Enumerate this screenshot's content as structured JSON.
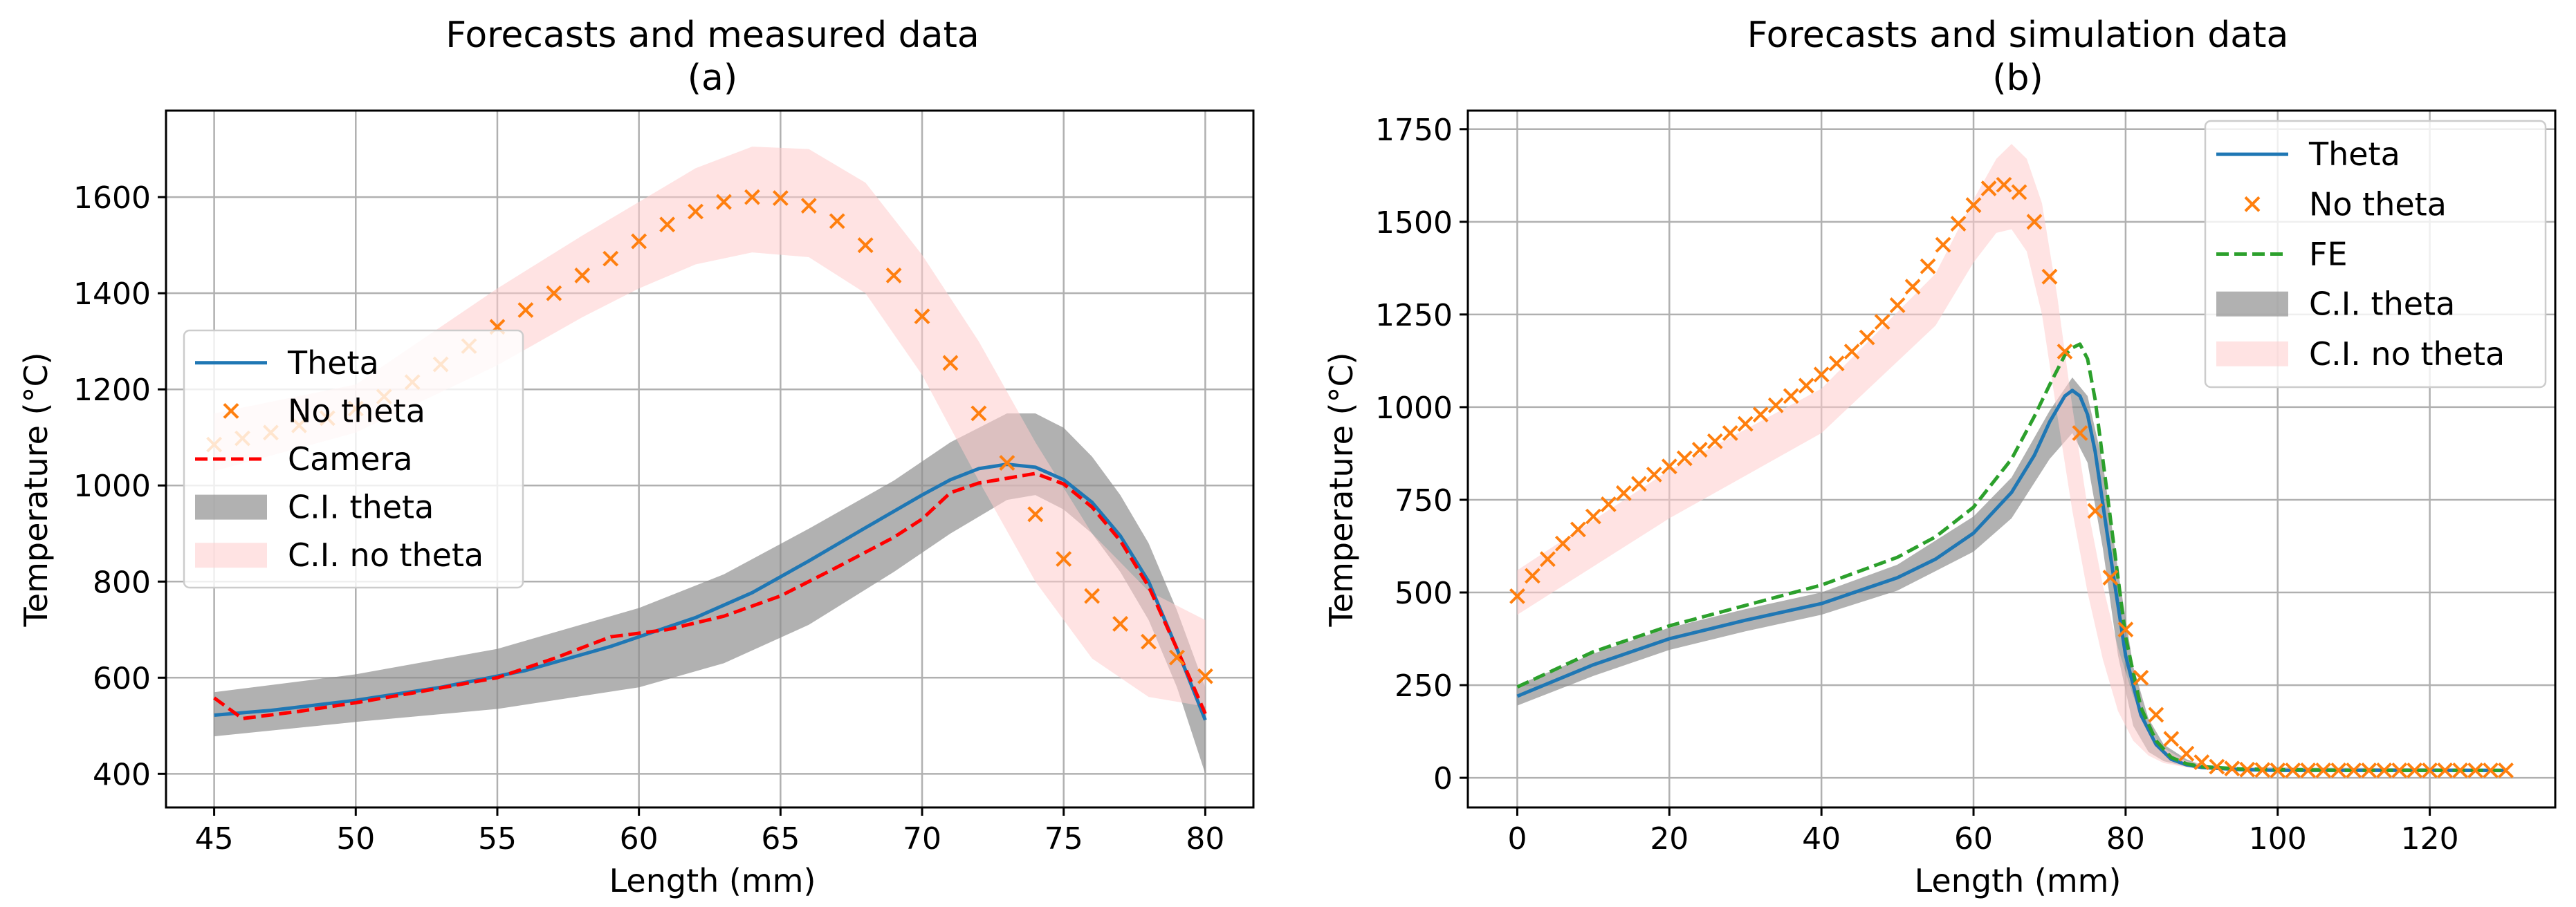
{
  "figure": {
    "colors": {
      "theta": "#1f77b4",
      "no_theta": "#ff7f0e",
      "camera": "#ff0000",
      "fe": "#2ca02c",
      "ci_theta": "#8c8c8c",
      "ci_no_theta": "#ffcccc",
      "grid": "#b0b0b0"
    }
  },
  "chart_data": [
    {
      "id": "a",
      "type": "line",
      "title": "Forecasts and measured data",
      "subtitle": "(a)",
      "xlabel": "Length (mm)",
      "ylabel": "Temperature (°C)",
      "xlim": [
        43.3,
        81.7
      ],
      "ylim": [
        330,
        1780
      ],
      "xticks": [
        45,
        50,
        55,
        60,
        65,
        70,
        75,
        80
      ],
      "yticks": [
        400,
        600,
        800,
        1000,
        1200,
        1400,
        1600
      ],
      "grid": true,
      "legend_position": "center-left",
      "legend": [
        "Theta",
        "No theta",
        "Camera",
        "C.I. theta",
        "C.I. no theta"
      ],
      "series": [
        {
          "name": "Theta",
          "style": "line",
          "x": [
            45,
            47,
            50,
            53,
            56,
            59,
            62,
            64,
            66,
            68,
            70,
            71,
            72,
            73,
            74,
            75,
            76,
            77,
            78,
            79,
            80
          ],
          "values": [
            522,
            532,
            553,
            580,
            615,
            665,
            725,
            777,
            843,
            912,
            980,
            1012,
            1035,
            1044,
            1038,
            1012,
            965,
            895,
            800,
            660,
            512
          ]
        },
        {
          "name": "No theta",
          "style": "markers",
          "x": [
            45,
            46,
            47,
            48,
            49,
            50,
            51,
            52,
            53,
            54,
            55,
            56,
            57,
            58,
            59,
            60,
            61,
            62,
            63,
            64,
            65,
            66,
            67,
            68,
            69,
            70,
            71,
            72,
            73,
            74,
            75,
            76,
            77,
            78,
            79,
            80
          ],
          "values": [
            1085,
            1098,
            1110,
            1125,
            1140,
            1160,
            1185,
            1215,
            1252,
            1290,
            1330,
            1365,
            1400,
            1437,
            1472,
            1508,
            1543,
            1570,
            1590,
            1600,
            1598,
            1582,
            1550,
            1500,
            1437,
            1352,
            1255,
            1150,
            1047,
            940,
            847,
            770,
            712,
            675,
            642,
            603
          ]
        },
        {
          "name": "Camera",
          "style": "dashed",
          "x": [
            45,
            46,
            48,
            50,
            52,
            55,
            57,
            59,
            61,
            63,
            65,
            67,
            69,
            70,
            71,
            72,
            73,
            74,
            75,
            76,
            77,
            78,
            79,
            80
          ],
          "values": [
            558,
            515,
            530,
            548,
            568,
            600,
            640,
            685,
            700,
            728,
            770,
            830,
            892,
            930,
            985,
            1005,
            1015,
            1025,
            1003,
            955,
            885,
            790,
            660,
            525
          ]
        },
        {
          "name": "C.I. theta",
          "style": "band",
          "x": [
            45,
            50,
            55,
            60,
            63,
            66,
            69,
            71,
            73,
            74,
            75,
            76,
            77,
            78,
            79,
            80
          ],
          "lower": [
            478,
            508,
            535,
            580,
            630,
            710,
            820,
            900,
            970,
            980,
            950,
            900,
            820,
            720,
            580,
            400
          ],
          "upper": [
            570,
            607,
            660,
            745,
            815,
            910,
            1010,
            1090,
            1150,
            1150,
            1120,
            1060,
            980,
            880,
            740,
            580
          ]
        },
        {
          "name": "C.I. no theta",
          "style": "band",
          "x": [
            45,
            50,
            55,
            58,
            60,
            62,
            64,
            66,
            68,
            70,
            72,
            74,
            76,
            78,
            80
          ],
          "lower": [
            1030,
            1110,
            1250,
            1350,
            1410,
            1460,
            1485,
            1475,
            1400,
            1230,
            1010,
            800,
            640,
            560,
            540
          ],
          "upper": [
            1150,
            1210,
            1410,
            1520,
            1590,
            1660,
            1705,
            1700,
            1630,
            1480,
            1300,
            1090,
            900,
            780,
            720
          ]
        }
      ]
    },
    {
      "id": "b",
      "type": "line",
      "title": "Forecasts and simulation data",
      "subtitle": "(b)",
      "xlabel": "Length (mm)",
      "ylabel": "Temperature (°C)",
      "xlim": [
        -6.5,
        136.5
      ],
      "ylim": [
        -80,
        1800
      ],
      "xticks": [
        0,
        20,
        40,
        60,
        80,
        100,
        120
      ],
      "yticks": [
        0,
        250,
        500,
        750,
        1000,
        1250,
        1500,
        1750
      ],
      "grid": true,
      "legend_position": "top-right",
      "legend": [
        "Theta",
        "No theta",
        "FE",
        "C.I. theta",
        "C.I. no theta"
      ],
      "series": [
        {
          "name": "Theta",
          "style": "line",
          "x": [
            0,
            10,
            20,
            30,
            40,
            50,
            55,
            60,
            65,
            68,
            70,
            72,
            73,
            74,
            75,
            76,
            78,
            80,
            82,
            84,
            86,
            88,
            90,
            95,
            100,
            110,
            120,
            130
          ],
          "values": [
            220,
            305,
            375,
            425,
            470,
            540,
            590,
            660,
            770,
            870,
            960,
            1030,
            1045,
            1030,
            980,
            880,
            600,
            330,
            170,
            90,
            50,
            35,
            28,
            22,
            20,
            20,
            20,
            20
          ]
        },
        {
          "name": "No theta",
          "style": "markers",
          "x": [
            0,
            2,
            4,
            6,
            8,
            10,
            12,
            14,
            16,
            18,
            20,
            22,
            24,
            26,
            28,
            30,
            32,
            34,
            36,
            38,
            40,
            42,
            44,
            46,
            48,
            50,
            52,
            54,
            56,
            58,
            60,
            62,
            64,
            66,
            68,
            70,
            72,
            74,
            76,
            78,
            80,
            82,
            84,
            86,
            88,
            90,
            92,
            94,
            96,
            98,
            100,
            102,
            104,
            106,
            108,
            110,
            112,
            114,
            116,
            118,
            120,
            122,
            124,
            126,
            128,
            130
          ],
          "values": [
            490,
            545,
            590,
            632,
            670,
            705,
            738,
            768,
            793,
            818,
            840,
            862,
            885,
            908,
            930,
            955,
            980,
            1005,
            1030,
            1058,
            1088,
            1118,
            1150,
            1188,
            1230,
            1275,
            1325,
            1380,
            1438,
            1495,
            1545,
            1590,
            1600,
            1580,
            1500,
            1352,
            1150,
            930,
            720,
            540,
            400,
            270,
            170,
            105,
            65,
            42,
            30,
            25,
            22,
            21,
            20,
            20,
            20,
            20,
            20,
            20,
            20,
            20,
            20,
            20,
            20,
            20,
            20,
            20,
            20,
            20
          ]
        },
        {
          "name": "FE",
          "style": "dashed",
          "x": [
            0,
            10,
            20,
            30,
            40,
            50,
            55,
            60,
            65,
            68,
            70,
            72,
            73,
            74,
            75,
            76,
            78,
            80,
            82,
            84,
            86,
            88,
            90,
            95,
            100,
            110,
            120,
            130
          ],
          "values": [
            245,
            340,
            410,
            465,
            520,
            595,
            650,
            730,
            860,
            975,
            1060,
            1140,
            1160,
            1170,
            1130,
            1020,
            700,
            380,
            190,
            100,
            55,
            38,
            30,
            24,
            22,
            20,
            20,
            20
          ]
        },
        {
          "name": "C.I. theta",
          "style": "band",
          "x": [
            0,
            10,
            20,
            30,
            40,
            50,
            60,
            65,
            70,
            73,
            75,
            77,
            79,
            81,
            83,
            85,
            88,
            90,
            95,
            130
          ],
          "lower": [
            195,
            275,
            345,
            395,
            440,
            505,
            610,
            700,
            860,
            930,
            850,
            620,
            330,
            140,
            70,
            45,
            30,
            25,
            18,
            15
          ],
          "upper": [
            250,
            335,
            405,
            455,
            500,
            575,
            705,
            810,
            990,
            1080,
            1030,
            850,
            560,
            300,
            160,
            90,
            50,
            35,
            28,
            25
          ]
        },
        {
          "name": "C.I. no theta",
          "style": "band",
          "x": [
            0,
            20,
            40,
            55,
            60,
            63,
            65,
            67,
            69,
            71,
            73,
            75,
            77,
            79,
            81,
            83,
            85,
            88,
            92,
            100,
            130
          ],
          "lower": [
            440,
            700,
            930,
            1220,
            1390,
            1470,
            1480,
            1420,
            1250,
            980,
            720,
            500,
            320,
            180,
            100,
            60,
            40,
            28,
            22,
            20,
            18
          ],
          "upper": [
            560,
            830,
            1050,
            1360,
            1560,
            1670,
            1710,
            1670,
            1550,
            1300,
            1000,
            730,
            520,
            350,
            220,
            130,
            80,
            45,
            30,
            25,
            22
          ]
        }
      ]
    }
  ]
}
